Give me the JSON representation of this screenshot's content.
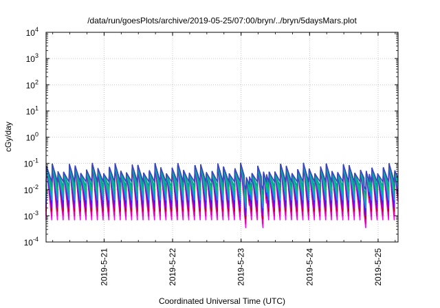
{
  "chart_data": {
    "type": "line",
    "title": "/data/run/goesPlots/archive/2019-05-25/07:00/bryn/../bryn/5daysMars.plot",
    "xlabel": "Coordinated Universal Time (UTC)",
    "ylabel": "cGy/day",
    "y_scale": "log",
    "ylim_exponents": [
      -4,
      4
    ],
    "y_ticks": [
      {
        "base": "10",
        "exp": "4"
      },
      {
        "base": "10",
        "exp": "3"
      },
      {
        "base": "10",
        "exp": "2"
      },
      {
        "base": "10",
        "exp": "1"
      },
      {
        "base": "10",
        "exp": "0"
      },
      {
        "base": "10",
        "exp": "-1"
      },
      {
        "base": "10",
        "exp": "-2"
      },
      {
        "base": "10",
        "exp": "-3"
      },
      {
        "base": "10",
        "exp": "-4"
      }
    ],
    "x_range_days": [
      "2019-05-20 03:40",
      "2019-05-25 07:00"
    ],
    "x_ticks": [
      "2019-5-21",
      "2019-5-22",
      "2019-5-23",
      "2019-5-24",
      "2019-5-25"
    ],
    "grid": true,
    "pattern": {
      "period_hours": 2,
      "peak_dex_range": [
        -1.4,
        -1.0
      ],
      "approx_peak_value": 0.05,
      "approx_trough_values": [
        0.0007,
        0.02
      ],
      "dropout_times": [
        "2019-05-23 02:00",
        "2019-05-23 08:00",
        "2019-05-24 20:00"
      ]
    },
    "series": [
      {
        "color": "#ff00ff",
        "approx_trough_value": 0.0007
      },
      {
        "color": "#e000a0",
        "approx_trough_value": 0.001
      },
      {
        "color": "#c00000",
        "approx_trough_value": 0.0015
      },
      {
        "color": "#8000ff",
        "approx_trough_value": 0.002
      },
      {
        "color": "#2030ff",
        "approx_trough_value": 0.003
      },
      {
        "color": "#1090e0",
        "approx_trough_value": 0.004
      },
      {
        "color": "#00b0b0",
        "approx_trough_value": 0.006
      },
      {
        "color": "#10c060",
        "approx_trough_value": 0.009
      },
      {
        "color": "#00a0a0",
        "approx_trough_value": 0.013
      },
      {
        "color": "#4040c0",
        "approx_trough_value": 0.02
      }
    ]
  }
}
